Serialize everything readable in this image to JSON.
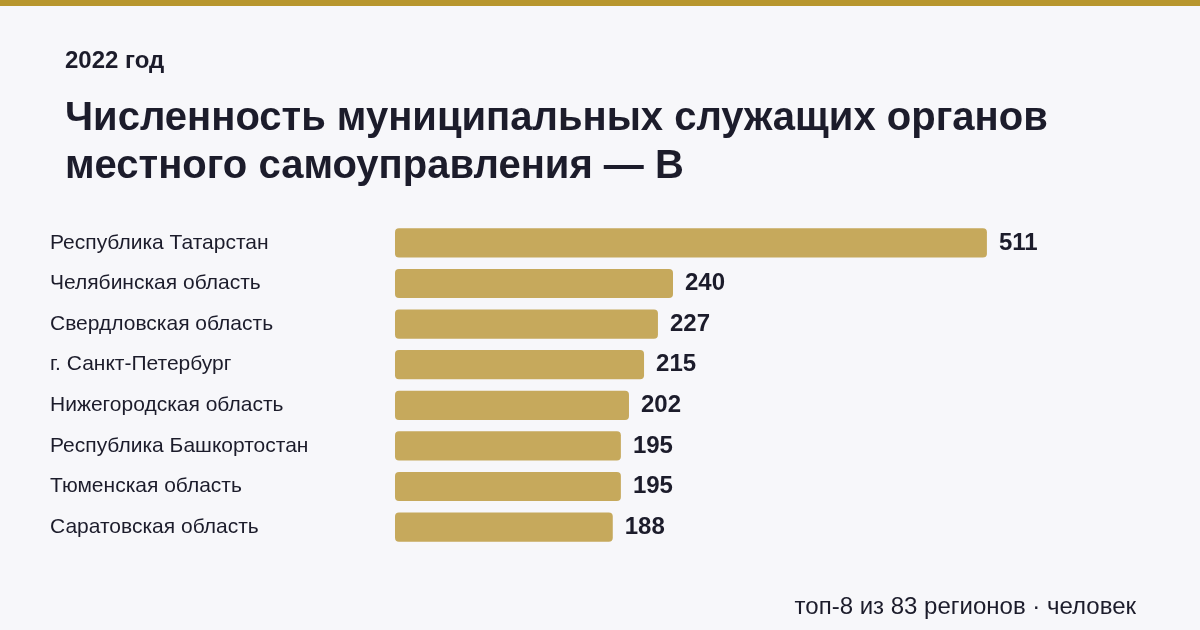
{
  "chart_data": {
    "type": "bar",
    "orientation": "horizontal",
    "subtitle": "2022 год",
    "title": "Численность муниципальных служащих органов местного самоуправления — В",
    "categories": [
      "Республика Татарстан",
      "Челябинская область",
      "Свердловская область",
      "г. Санкт-Петербург",
      "Нижегородская область",
      "Республика Башкортостан",
      "Тюменская область",
      "Саратовская область"
    ],
    "values": [
      511,
      240,
      227,
      215,
      202,
      195,
      195,
      188
    ],
    "color": "#c6a95c",
    "data_labels": true,
    "annotations": [
      "топ-8 из 83 регионов · человек"
    ]
  }
}
